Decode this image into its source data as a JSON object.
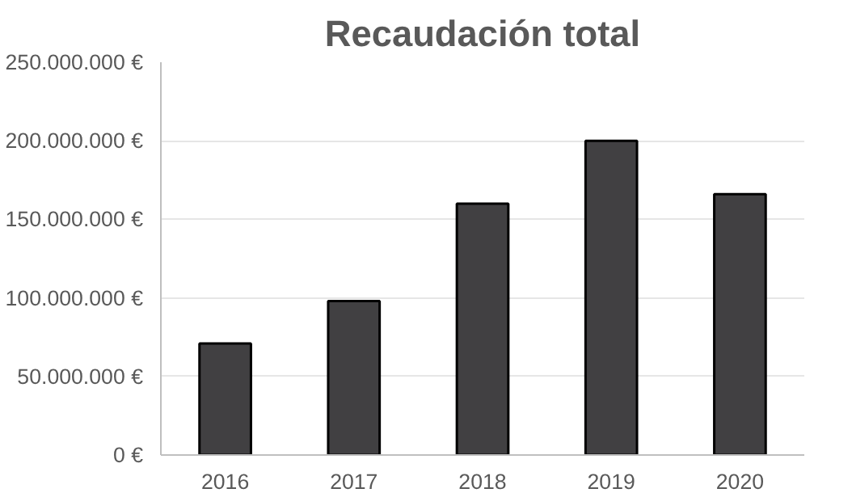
{
  "chart_data": {
    "type": "bar",
    "title": "Recaudación total",
    "categories": [
      "2016",
      "2017",
      "2018",
      "2019",
      "2020"
    ],
    "values": [
      71000000,
      98000000,
      160000000,
      200000000,
      166000000
    ],
    "color": "#414042",
    "ylim": [
      0,
      250000000
    ],
    "yticks": [
      {
        "value": 0,
        "label": "0 €"
      },
      {
        "value": 50000000,
        "label": "50.000.000 €"
      },
      {
        "value": 100000000,
        "label": "100.000.000 €"
      },
      {
        "value": 150000000,
        "label": "150.000.000 €"
      },
      {
        "value": 200000000,
        "label": "200.000.000 €"
      },
      {
        "value": 250000000,
        "label": "250.000.000 €"
      }
    ],
    "grid": "y"
  }
}
